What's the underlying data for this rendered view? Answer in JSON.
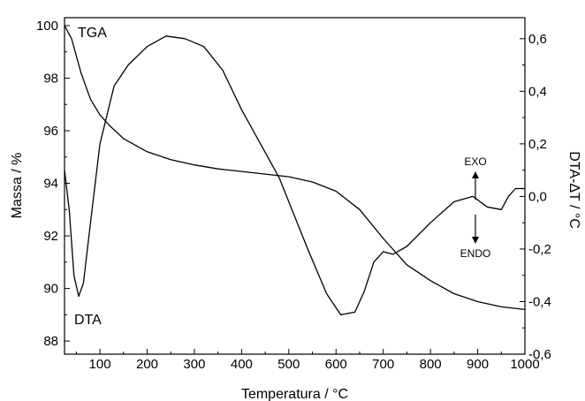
{
  "chart_data": {
    "type": "line",
    "xlabel": "Temperatura / °C",
    "ylabel_left": "Massa / %",
    "ylabel_right": "DTA-ΔT / °C",
    "xlim": [
      25,
      1000
    ],
    "ylim_left": [
      87.5,
      100.3
    ],
    "ylim_right": [
      -0.6,
      0.68
    ],
    "x_ticks": [
      100,
      200,
      300,
      400,
      500,
      600,
      700,
      800,
      900,
      1000
    ],
    "y_left_ticks": [
      {
        "value": 88,
        "label": "88"
      },
      {
        "value": 90,
        "label": "90"
      },
      {
        "value": 92,
        "label": "92"
      },
      {
        "value": 94,
        "label": "94"
      },
      {
        "value": 96,
        "label": "96"
      },
      {
        "value": 98,
        "label": "98"
      },
      {
        "value": 100,
        "label": "100"
      }
    ],
    "y_right_ticks": [
      {
        "value": -0.6,
        "label": "-0,6"
      },
      {
        "value": -0.4,
        "label": "-0,4"
      },
      {
        "value": -0.2,
        "label": "-0,2"
      },
      {
        "value": 0.0,
        "label": "0,0"
      },
      {
        "value": 0.2,
        "label": "0,2"
      },
      {
        "value": 0.4,
        "label": "0,4"
      },
      {
        "value": 0.6,
        "label": "0,6"
      }
    ],
    "grid": false,
    "series": [
      {
        "name": "TGA",
        "axis": "left",
        "x": [
          25,
          40,
          60,
          80,
          100,
          120,
          150,
          200,
          250,
          300,
          350,
          400,
          450,
          500,
          550,
          600,
          650,
          700,
          750,
          800,
          850,
          900,
          950,
          1000
        ],
        "y": [
          100.0,
          99.5,
          98.2,
          97.2,
          96.6,
          96.2,
          95.7,
          95.2,
          94.9,
          94.7,
          94.55,
          94.45,
          94.35,
          94.25,
          94.05,
          93.7,
          93.0,
          91.9,
          90.9,
          90.3,
          89.8,
          89.5,
          89.3,
          89.2
        ]
      },
      {
        "name": "DTA",
        "axis": "right",
        "x": [
          25,
          35,
          45,
          55,
          65,
          80,
          100,
          130,
          160,
          200,
          240,
          280,
          320,
          360,
          400,
          440,
          480,
          500,
          540,
          580,
          610,
          640,
          660,
          680,
          700,
          720,
          750,
          800,
          850,
          890,
          920,
          950,
          965,
          980,
          1000
        ],
        "y": [
          0.1,
          -0.05,
          -0.3,
          -0.38,
          -0.33,
          -0.1,
          0.2,
          0.42,
          0.5,
          0.57,
          0.61,
          0.6,
          0.57,
          0.48,
          0.33,
          0.2,
          0.07,
          -0.02,
          -0.2,
          -0.37,
          -0.45,
          -0.44,
          -0.36,
          -0.25,
          -0.21,
          -0.22,
          -0.19,
          -0.1,
          -0.02,
          0.0,
          -0.04,
          -0.05,
          0.0,
          0.03,
          0.03
        ]
      }
    ],
    "annotations": [
      {
        "text": "TGA",
        "target": "TGA"
      },
      {
        "text": "DTA",
        "target": "DTA"
      },
      {
        "text": "EXO",
        "direction": "up"
      },
      {
        "text": "ENDO",
        "direction": "down"
      }
    ]
  }
}
